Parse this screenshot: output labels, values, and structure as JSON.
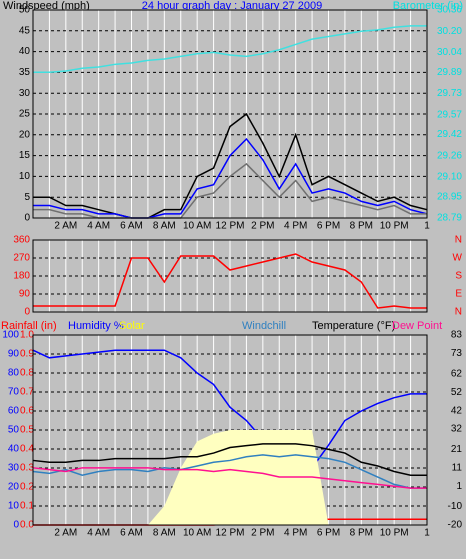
{
  "chart_data": [
    {
      "type": "line",
      "title": "24 hour graph day : January 27 2009",
      "title_color": "#0000ff",
      "ylabel": "Windspeed (mph)",
      "y2label": "Barometer (in)",
      "ycolor": "#000000",
      "y2color": "#00e0e0",
      "x": [
        0,
        1,
        2,
        3,
        4,
        5,
        6,
        7,
        8,
        9,
        10,
        11,
        12,
        13,
        14,
        15,
        16,
        17,
        18,
        19,
        20,
        21,
        22,
        23,
        24
      ],
      "xlim": [
        0,
        24
      ],
      "xticks": [
        {
          "value": 2,
          "label": "2 AM"
        },
        {
          "value": 4,
          "label": "4 AM"
        },
        {
          "value": 6,
          "label": "6 AM"
        },
        {
          "value": 8,
          "label": "8 AM"
        },
        {
          "value": 10,
          "label": "10 AM"
        },
        {
          "value": 12,
          "label": "12 PM"
        },
        {
          "value": 14,
          "label": "2 PM"
        },
        {
          "value": 16,
          "label": "4 PM"
        },
        {
          "value": 18,
          "label": "6 PM"
        },
        {
          "value": 20,
          "label": "8 PM"
        },
        {
          "value": 22,
          "label": "10 PM"
        },
        {
          "value": 24,
          "label": "1"
        }
      ],
      "xminor": [
        1,
        3,
        5,
        7,
        9,
        11,
        13,
        15,
        17,
        19,
        21,
        23
      ],
      "ylim": [
        0,
        50
      ],
      "yticks": [
        0,
        5,
        10,
        15,
        20,
        25,
        30,
        35,
        40,
        45,
        50
      ],
      "grid": true,
      "y2lim": [
        28.79,
        30.36
      ],
      "y2ticks": [
        28.79,
        28.95,
        {
          "value": 29.1,
          "label": "29.10"
        },
        29.26,
        29.42,
        29.57,
        29.73,
        29.89,
        30.04,
        {
          "value": 30.2,
          "label": "30.20"
        },
        30.36
      ],
      "series": [
        {
          "color": "#000000",
          "axis": "y",
          "values": [
            5,
            5,
            3,
            3,
            2,
            1,
            0,
            0,
            2,
            2,
            10,
            12,
            22,
            25,
            18,
            10,
            20,
            8,
            10,
            8,
            6,
            4,
            5,
            3,
            2
          ]
        },
        {
          "color": "#0000ff",
          "axis": "y",
          "values": [
            3,
            3,
            2,
            2,
            1,
            1,
            0,
            0,
            1,
            1,
            7,
            8,
            15,
            19,
            14,
            7,
            13,
            6,
            7,
            6,
            4,
            3,
            4,
            2,
            1
          ]
        },
        {
          "color": "#707070",
          "axis": "y",
          "values": [
            2,
            2,
            1,
            1,
            0,
            0,
            0,
            0,
            0,
            0,
            5,
            6,
            10,
            13,
            9,
            5,
            9,
            4,
            5,
            4,
            3,
            2,
            3,
            1,
            1
          ]
        },
        {
          "color": "#40e0e0",
          "axis": "y2",
          "values": [
            29.89,
            29.89,
            29.9,
            29.92,
            29.93,
            29.95,
            29.96,
            29.98,
            29.99,
            30.01,
            30.03,
            30.04,
            30.02,
            30.01,
            30.03,
            30.06,
            30.1,
            30.14,
            30.16,
            30.18,
            30.2,
            30.21,
            30.23,
            30.24,
            30.24
          ]
        }
      ]
    },
    {
      "type": "line",
      "ycolor": "#ff0000",
      "y2color": "#ff0000",
      "x": [
        0,
        1,
        2,
        3,
        4,
        5,
        6,
        7,
        8,
        9,
        10,
        11,
        12,
        13,
        14,
        15,
        16,
        17,
        18,
        19,
        20,
        21,
        22,
        23,
        24
      ],
      "xlim": [
        0,
        24
      ],
      "xminor": [
        1,
        2,
        3,
        4,
        5,
        6,
        7,
        8,
        9,
        10,
        11,
        12,
        13,
        14,
        15,
        16,
        17,
        18,
        19,
        20,
        21,
        22,
        23
      ],
      "ylim": [
        0,
        360
      ],
      "yticks": [
        0,
        90,
        180,
        270,
        360
      ],
      "grid": true,
      "y2lim": [
        0,
        360
      ],
      "y2ticks": [
        {
          "value": 0,
          "label": "N"
        },
        {
          "value": 90,
          "label": "E"
        },
        {
          "value": 180,
          "label": "S"
        },
        {
          "value": 270,
          "label": "W"
        },
        {
          "value": 360,
          "label": "N"
        }
      ],
      "series": [
        {
          "color": "#ff0000",
          "axis": "y",
          "values": [
            30,
            30,
            30,
            30,
            30,
            30,
            270,
            270,
            150,
            280,
            280,
            280,
            210,
            230,
            250,
            270,
            290,
            250,
            230,
            210,
            150,
            20,
            30,
            20,
            20
          ]
        }
      ]
    },
    {
      "type": "line",
      "ycolor": "#0000ff",
      "y3color": "#ff0000",
      "y2color": "#000000",
      "x": [
        0,
        1,
        2,
        3,
        4,
        5,
        6,
        7,
        8,
        9,
        10,
        11,
        12,
        13,
        14,
        15,
        16,
        17,
        18,
        19,
        20,
        21,
        22,
        23,
        24
      ],
      "xlim": [
        0,
        24
      ],
      "xticks": [
        {
          "value": 2,
          "label": "2 AM"
        },
        {
          "value": 4,
          "label": "4 AM"
        },
        {
          "value": 6,
          "label": "6 AM"
        },
        {
          "value": 8,
          "label": "8 AM"
        },
        {
          "value": 10,
          "label": "10 AM"
        },
        {
          "value": 12,
          "label": "12 PM"
        },
        {
          "value": 14,
          "label": "2 PM"
        },
        {
          "value": 16,
          "label": "4 PM"
        },
        {
          "value": 18,
          "label": "6 PM"
        },
        {
          "value": 20,
          "label": "8 PM"
        },
        {
          "value": 22,
          "label": "10 PM"
        },
        {
          "value": 24,
          "label": "1"
        }
      ],
      "xminor": [
        1,
        3,
        5,
        7,
        9,
        11,
        13,
        15,
        17,
        19,
        21,
        23
      ],
      "ylim": [
        0,
        100
      ],
      "yticks": [
        0,
        10,
        20,
        30,
        40,
        50,
        60,
        70,
        80,
        90,
        100
      ],
      "grid": true,
      "y3lim": [
        0,
        1
      ],
      "y3ticks": [
        {
          "value": 0,
          "label": "0.0"
        },
        0.1,
        0.2,
        0.3,
        0.4,
        0.5,
        0.6,
        0.7,
        0.8,
        0.9,
        {
          "value": 1,
          "label": "1.0"
        }
      ],
      "y2lim": [
        -20,
        83
      ],
      "y2ticks": [
        -20,
        -10,
        1,
        11,
        21,
        32,
        42,
        52,
        62,
        73,
        83
      ],
      "series": [
        {
          "name": "Rainfall (in)",
          "color": "#ff0000",
          "axis": "y3",
          "values": [
            0,
            0,
            0,
            0,
            0,
            0,
            0,
            0,
            0,
            0,
            0,
            0,
            0.01,
            0.01,
            0.02,
            0.02,
            0.03,
            0.03,
            0.03,
            0.03,
            0.03,
            0.03,
            0.03,
            0.03,
            0.03
          ]
        },
        {
          "name": "Humidity %",
          "color": "#0000ff",
          "axis": "y",
          "values": [
            92,
            88,
            89,
            90,
            91,
            92,
            92,
            92,
            92,
            88,
            80,
            74,
            62,
            55,
            45,
            38,
            32,
            30,
            42,
            55,
            60,
            64,
            67,
            69,
            69
          ]
        },
        {
          "name": "Solar",
          "color": "#ffffc0",
          "label_color": "#ffff00",
          "axis": "y",
          "fill": true,
          "values": [
            0,
            0,
            0,
            0,
            0,
            0,
            0,
            0,
            10,
            30,
            44,
            48,
            50,
            50,
            50,
            50,
            50,
            50,
            0,
            0,
            0,
            0,
            0,
            0,
            0
          ]
        },
        {
          "name": "Windchill",
          "color": "#3080c0",
          "axis": "y2",
          "values": [
            9,
            8,
            10,
            7,
            9,
            10,
            10,
            9,
            11,
            10,
            12,
            14,
            15,
            17,
            18,
            17,
            18,
            17,
            16,
            14,
            10,
            6,
            2,
            0,
            0
          ]
        },
        {
          "name": "Temperature (°F)",
          "color": "#000000",
          "axis": "y2",
          "values": [
            15,
            14,
            14,
            15,
            15,
            16,
            16,
            16,
            16,
            17,
            17,
            19,
            22,
            23,
            24,
            24,
            24,
            23,
            21,
            19,
            14,
            12,
            9,
            7,
            7
          ]
        },
        {
          "name": "Dew Point",
          "color": "#ff1090",
          "axis": "y2",
          "values": [
            11,
            10,
            9,
            11,
            11,
            11,
            11,
            11,
            10,
            10,
            10,
            9,
            10,
            9,
            8,
            6,
            6,
            6,
            5,
            4,
            3,
            2,
            1,
            0,
            0
          ]
        }
      ]
    }
  ]
}
